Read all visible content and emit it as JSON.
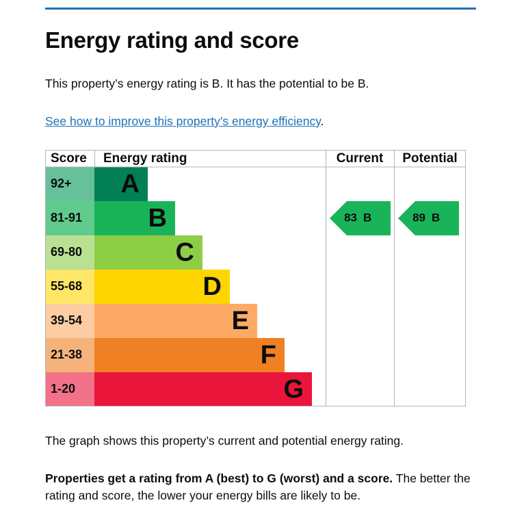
{
  "heading": "Energy rating and score",
  "intro": "This property’s energy rating is B. It has the potential to be B.",
  "link": {
    "text": "See how to improve this property’s energy efficiency",
    "after": "."
  },
  "graph": {
    "headers": {
      "score": "Score",
      "rating": "Energy rating",
      "current": "Current",
      "potential": "Potential"
    },
    "bands": [
      {
        "range": "92+",
        "letter": "A",
        "color": "#008054",
        "tint": "#66c09a"
      },
      {
        "range": "81-91",
        "letter": "B",
        "color": "#19b459",
        "tint": "#5fcb8c"
      },
      {
        "range": "69-80",
        "letter": "C",
        "color": "#8dce46",
        "tint": "#b9e192"
      },
      {
        "range": "55-68",
        "letter": "D",
        "color": "#ffd500",
        "tint": "#ffe666"
      },
      {
        "range": "39-54",
        "letter": "E",
        "color": "#fcaa65",
        "tint": "#fdcca3"
      },
      {
        "range": "21-38",
        "letter": "F",
        "color": "#ef8023",
        "tint": "#f5b37b"
      },
      {
        "range": "1-20",
        "letter": "G",
        "color": "#e9153b",
        "tint": "#f27389"
      }
    ],
    "current": {
      "score": 83,
      "rating": "B"
    },
    "potential": {
      "score": 89,
      "rating": "B"
    }
  },
  "caption": "The graph shows this property’s current and potential energy rating.",
  "note": {
    "bold": "Properties get a rating from A (best) to G (worst) and a score.",
    "rest": " The better the rating and score, the lower your energy bills are likely to be."
  }
}
